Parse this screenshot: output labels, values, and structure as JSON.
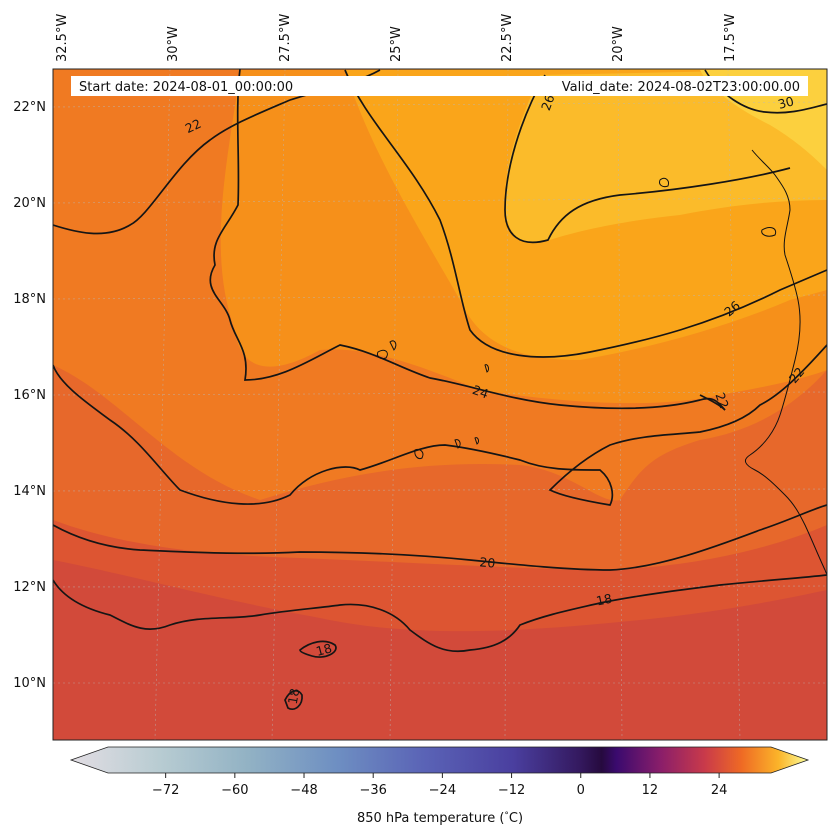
{
  "map": {
    "start_date": "Start date: 2024-08-01_00:00:00",
    "valid_date": "Valid_date: 2024-08-02T23:00:00.00",
    "lon_labels": [
      "32.5°W",
      "30°W",
      "27.5°W",
      "25°W",
      "22.5°W",
      "20°W",
      "17.5°W"
    ],
    "lat_labels": [
      "22°N",
      "20°N",
      "18°N",
      "16°N",
      "14°N",
      "12°N",
      "10°N"
    ],
    "contour_labels": [
      "22",
      "26",
      "30",
      "26",
      "22",
      "22",
      "24",
      "20",
      "18",
      "18",
      "18"
    ],
    "fill_colors": {
      "t16": "#d24a3a",
      "t18": "#dd5532",
      "t20": "#e7682b",
      "t22": "#f07a22",
      "t24": "#f6901a",
      "t26": "#faa51a",
      "t28": "#fbbb2a",
      "t30": "#fcd03e"
    }
  },
  "colorbar": {
    "ticks": [
      "−72",
      "−60",
      "−48",
      "−36",
      "−24",
      "−12",
      "0",
      "12",
      "24"
    ],
    "tick_values": [
      -72,
      -60,
      -48,
      -36,
      -24,
      -12,
      0,
      12,
      24
    ],
    "range": [
      -82,
      33
    ],
    "label": "850 hPa temperature (",
    "label_unit": "C)",
    "label_degree": "°",
    "extend": "both"
  }
}
